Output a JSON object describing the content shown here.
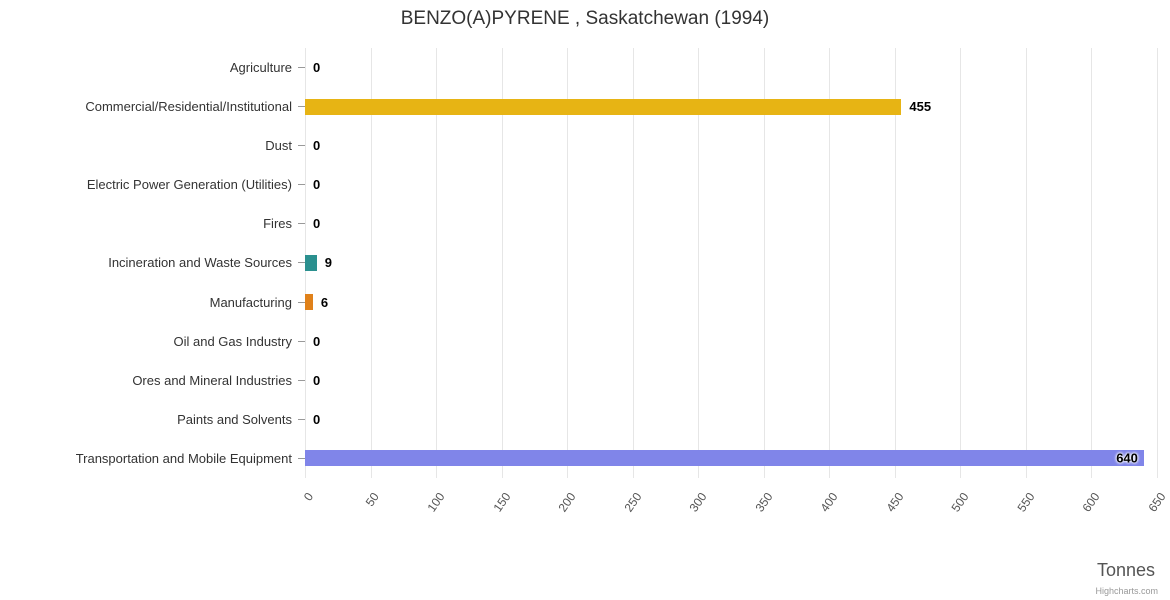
{
  "credits": "Highcharts.com",
  "chart_data": {
    "type": "bar",
    "title": "BENZO(A)PYRENE , Saskatchewan (1994)",
    "xlabel": "Tonnes",
    "categories": [
      "Agriculture",
      "Commercial/Residential/Institutional",
      "Dust",
      "Electric Power Generation (Utilities)",
      "Fires",
      "Incineration and Waste Sources",
      "Manufacturing",
      "Oil and Gas Industry",
      "Ores and Mineral Industries",
      "Paints and Solvents",
      "Transportation and Mobile Equipment"
    ],
    "values": [
      0,
      455,
      0,
      0,
      0,
      9,
      6,
      0,
      0,
      0,
      640
    ],
    "colors": [
      null,
      "#e7b414",
      null,
      null,
      null,
      "#2b908f",
      "#e0811a",
      null,
      null,
      null,
      "#8085e9"
    ],
    "xlim": [
      0,
      650
    ],
    "xticks": [
      0,
      50,
      100,
      150,
      200,
      250,
      300,
      350,
      400,
      450,
      500,
      550,
      600,
      650
    ],
    "grid": true,
    "legend": false,
    "background": "#ffffff"
  }
}
